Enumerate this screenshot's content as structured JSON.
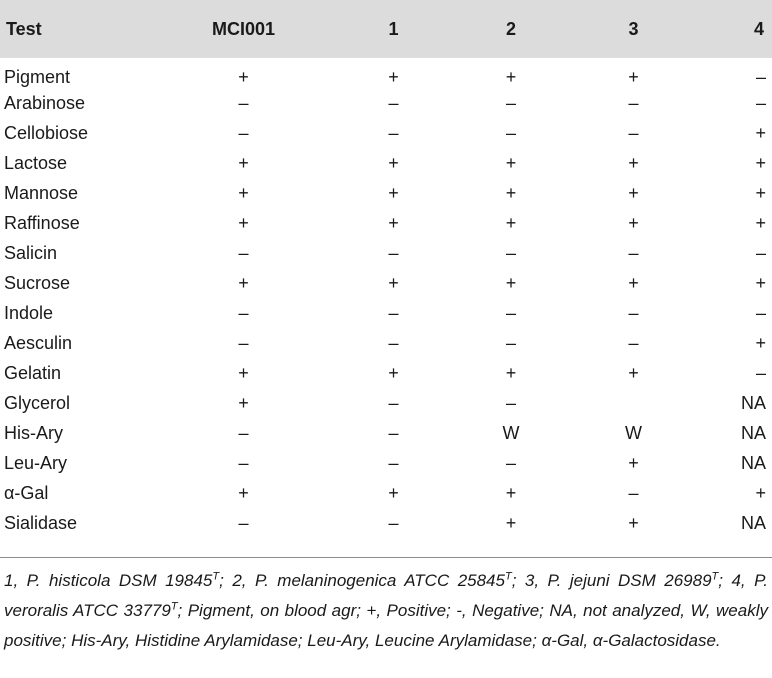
{
  "table": {
    "headers": [
      "Test",
      "MCI001",
      "1",
      "2",
      "3",
      "4"
    ],
    "rows": [
      [
        "Pigment",
        "+",
        "+",
        "+",
        "+",
        "–"
      ],
      [
        "Arabinose",
        "–",
        "–",
        "–",
        "–",
        "–"
      ],
      [
        "Cellobiose",
        "–",
        "–",
        "–",
        "–",
        "+"
      ],
      [
        "Lactose",
        "+",
        "+",
        "+",
        "+",
        "+"
      ],
      [
        "Mannose",
        "+",
        "+",
        "+",
        "+",
        "+"
      ],
      [
        "Raffinose",
        "+",
        "+",
        "+",
        "+",
        "+"
      ],
      [
        "Salicin",
        "–",
        "–",
        "–",
        "–",
        "–"
      ],
      [
        "Sucrose",
        "+",
        "+",
        "+",
        "+",
        "+"
      ],
      [
        "Indole",
        "–",
        "–",
        "–",
        "–",
        "–"
      ],
      [
        "Aesculin",
        "–",
        "–",
        "–",
        "–",
        "+"
      ],
      [
        "Gelatin",
        "+",
        "+",
        "+",
        "+",
        "–"
      ],
      [
        "Glycerol",
        "+",
        "–",
        "–",
        "",
        "NA"
      ],
      [
        "His-Ary",
        "–",
        "–",
        "W",
        "W",
        "NA"
      ],
      [
        "Leu-Ary",
        "–",
        "–",
        "–",
        "+",
        "NA"
      ],
      [
        "α-Gal",
        "+",
        "+",
        "+",
        "–",
        "+"
      ],
      [
        "Sialidase",
        "–",
        "–",
        "+",
        "+",
        "NA"
      ]
    ]
  },
  "footnote": {
    "p1": "1, P. histicola DSM 19845",
    "p2": "; 2, P. melaninogenica ATCC 25845",
    "p3": "; 3, P. jejuni DSM 26989",
    "p4": "; 4, P. veroralis ATCC 33779",
    "p5": "; Pigment, on blood agr; +, Positive; -, Negative; NA, not analyzed, W, weakly positive; His-Ary, Histidine Arylamidase; Leu-Ary, Leucine Arylamidase; α-Gal, α-Galactosidase.",
    "type_mark": "T"
  }
}
